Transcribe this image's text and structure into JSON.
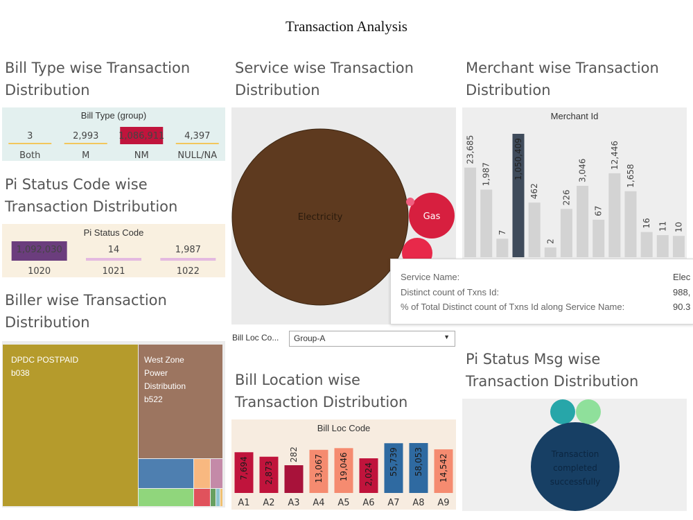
{
  "page_title": "Transaction Analysis",
  "sections": {
    "bill_type": "Bill Type wise Transaction Distribution",
    "service": "Service wise Transaction Distribution",
    "merchant": "Merchant wise Transaction Distribution",
    "pi_status_code": "Pi Status Code wise Transaction Distribution",
    "biller": "Biller wise Transaction Distribution",
    "bill_location": "Bill Location wise Transaction Distribution",
    "pi_status_msg": "Pi Status Msg wise Transaction Distribution"
  },
  "filter": {
    "label": "Bill Loc Co...",
    "value": "Group-A"
  },
  "tooltip": {
    "rows": [
      {
        "label": "Service Name:",
        "value": "Elec"
      },
      {
        "label": "Distinct count of Txns Id:",
        "value": "988,"
      },
      {
        "label": "% of Total Distinct count of Txns Id along Service Name:",
        "value": "90.3"
      }
    ]
  },
  "chart_data": [
    {
      "id": "bill_type",
      "type": "bar",
      "header": "Bill Type (group)",
      "categories": [
        "Both",
        "M",
        "NM",
        "NULL/NA"
      ],
      "values": [
        3,
        2993,
        1086911,
        4397
      ],
      "labels": [
        "3",
        "2,993",
        "1,086,911",
        "4,397"
      ],
      "colors": [
        "#f2c75c",
        "#f2c75c",
        "#c0143c",
        "#f2c75c"
      ]
    },
    {
      "id": "pi_status_code",
      "type": "bar",
      "header": "Pi Status Code",
      "categories": [
        "1020",
        "1021",
        "1022"
      ],
      "values": [
        1092030,
        14,
        1987
      ],
      "labels": [
        "1,092,030",
        "14",
        "1,987"
      ],
      "colors": [
        "#6b3d7d",
        "#e4b9e0",
        "#e4b9e0"
      ]
    },
    {
      "id": "merchant",
      "type": "bar",
      "header": "Merchant Id",
      "categories": [
        "",
        "",
        "",
        "",
        "",
        "",
        "",
        "",
        "",
        "",
        "",
        "",
        "",
        ""
      ],
      "values": [
        23685,
        1987,
        7,
        1050409,
        462,
        2,
        226,
        3046,
        67,
        12446,
        1658,
        16,
        11,
        10
      ],
      "labels": [
        "23,685",
        "1,987",
        "7",
        "1,050,409",
        "462",
        "2",
        "226",
        "3,046",
        "67",
        "12,446",
        "1,658",
        "16",
        "11",
        "10"
      ],
      "colors": [
        "#d3d3d3",
        "#d3d3d3",
        "#d3d3d3",
        "#3f4b5b",
        "#d3d3d3",
        "#d3d3d3",
        "#d3d3d3",
        "#d3d3d3",
        "#d3d3d3",
        "#d3d3d3",
        "#d3d3d3",
        "#d3d3d3",
        "#d3d3d3",
        "#d3d3d3"
      ]
    },
    {
      "id": "bill_location",
      "type": "bar",
      "header": "Bill Loc Code",
      "categories": [
        "A1",
        "A2",
        "A3",
        "A4",
        "A5",
        "A6",
        "A7",
        "A8",
        "A9"
      ],
      "values": [
        7694,
        2873,
        282,
        13067,
        19046,
        2024,
        55739,
        58053,
        14542
      ],
      "labels": [
        "7,694",
        "2,873",
        "282",
        "13,067",
        "19,046",
        "2,024",
        "55,739",
        "58,053",
        "14,542"
      ],
      "colors": [
        "#c0143c",
        "#c0143c",
        "#a8123a",
        "#f58b70",
        "#f58b70",
        "#c0143c",
        "#2f6aa1",
        "#2f6aa1",
        "#f58b70"
      ]
    },
    {
      "id": "service",
      "type": "bubble",
      "items": [
        {
          "name": "Electricity",
          "color": "#5e3a1f"
        },
        {
          "name": "Gas",
          "color": "#d71f3f"
        },
        {
          "name": "",
          "color": "#e8294a"
        },
        {
          "name": "",
          "color": "#e8294a"
        }
      ]
    },
    {
      "id": "biller",
      "type": "treemap",
      "items": [
        {
          "name": "DPDC POSTPAID\nb038",
          "color": "#b59b2c"
        },
        {
          "name": "West Zone\nPower\nDistribution\nb522",
          "color": "#9c7560"
        },
        {
          "name": "",
          "color": "#4e7fb0"
        },
        {
          "name": "",
          "color": "#f8b880"
        },
        {
          "name": "",
          "color": "#c48aa8"
        },
        {
          "name": "",
          "color": "#90d67c"
        },
        {
          "name": "",
          "color": "#e0525c"
        },
        {
          "name": "",
          "color": "#68a060"
        },
        {
          "name": "",
          "color": "#8fc6d0"
        },
        {
          "name": "",
          "color": "#f0c070"
        }
      ]
    },
    {
      "id": "pi_status_msg",
      "type": "bubble",
      "items": [
        {
          "name": "Transaction\ncompleted\nsuccessfully",
          "color": "#173f64"
        },
        {
          "name": "",
          "color": "#27a6a9"
        },
        {
          "name": "",
          "color": "#8fe09b"
        }
      ]
    }
  ]
}
